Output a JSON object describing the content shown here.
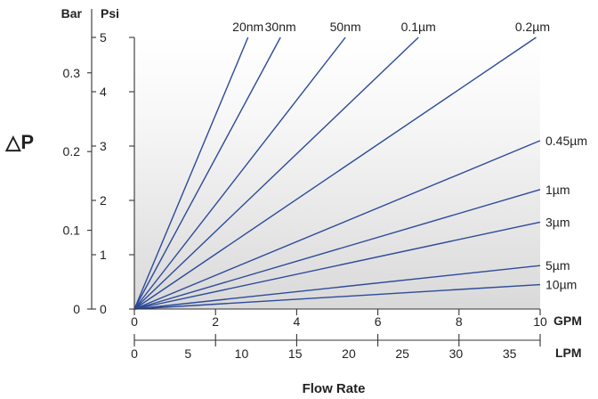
{
  "chart_data": {
    "type": "line",
    "title": "",
    "xlabel": "Flow Rate",
    "ylabel": "△P",
    "x_axis_gpm": {
      "unit": "GPM",
      "range": [
        0,
        10
      ],
      "ticks": [
        0,
        2,
        4,
        6,
        8,
        10
      ]
    },
    "x_axis_lpm": {
      "unit": "LPM",
      "range": [
        0,
        37.85
      ],
      "ticks": [
        0,
        5,
        10,
        15,
        20,
        25,
        30,
        35
      ]
    },
    "y_axis_psi": {
      "unit": "Psi",
      "range": [
        0,
        5
      ],
      "ticks": [
        0,
        1,
        2,
        3,
        4,
        5
      ]
    },
    "y_axis_bar": {
      "unit": "Bar",
      "range": [
        0,
        0.345
      ],
      "ticks": [
        "0",
        "0.1",
        "0.2",
        "0.3"
      ],
      "tick_values": [
        0,
        0.1,
        0.2,
        0.3
      ]
    },
    "grid": false,
    "background": "light gray gradient",
    "series_color": "#2d4a9a",
    "series": [
      {
        "name": "20nm",
        "x": [
          0,
          2.8
        ],
        "y": [
          0,
          5
        ]
      },
      {
        "name": "30nm",
        "x": [
          0,
          3.6
        ],
        "y": [
          0,
          5
        ]
      },
      {
        "name": "50nm",
        "x": [
          0,
          5.2
        ],
        "y": [
          0,
          5
        ]
      },
      {
        "name": "0.1µm",
        "x": [
          0,
          7.0
        ],
        "y": [
          0,
          5
        ]
      },
      {
        "name": "0.2µm",
        "x": [
          0,
          9.9
        ],
        "y": [
          0,
          5
        ]
      },
      {
        "name": "0.45µm",
        "x": [
          0,
          10
        ],
        "y": [
          0,
          3.1
        ]
      },
      {
        "name": "1µm",
        "x": [
          0,
          10
        ],
        "y": [
          0,
          2.2
        ]
      },
      {
        "name": "3µm",
        "x": [
          0,
          10
        ],
        "y": [
          0,
          1.6
        ]
      },
      {
        "name": "5µm",
        "x": [
          0,
          10
        ],
        "y": [
          0,
          0.8
        ]
      },
      {
        "name": "10µm",
        "x": [
          0,
          10
        ],
        "y": [
          0,
          0.45
        ]
      }
    ]
  }
}
